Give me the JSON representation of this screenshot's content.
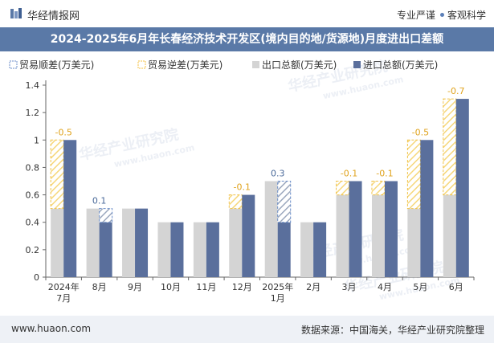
{
  "brand": {
    "name": "华经情报网",
    "tagline_left": "专业严谨",
    "tagline_right": "客观科学"
  },
  "title": "2024-2025年6月年长春经济技术开发区(境内目的地/货源地)月度进出口差额",
  "footer": {
    "url": "www.huaon.com",
    "source": "数据来源：中国海关，华经产业研究院整理"
  },
  "watermark": {
    "cn": "华经产业研究院",
    "en": "www.huaon.com"
  },
  "colors": {
    "export": "#d4d4d4",
    "import": "#5a6f9c",
    "surplus": "#6b8ec9",
    "deficit": "#f5c242",
    "label_surplus": "#4a6a9a",
    "label_deficit": "#e0a31d"
  },
  "chart_data": {
    "type": "bar",
    "categories": [
      "2024年\n7月",
      "8月",
      "9月",
      "10月",
      "11月",
      "12月",
      "2025年\n1月",
      "2月",
      "3月",
      "4月",
      "5月",
      "6月"
    ],
    "series": [
      {
        "name": "贸易顺差(万美元)",
        "values": [
          null,
          0.1,
          null,
          null,
          null,
          null,
          0.3,
          null,
          null,
          null,
          null,
          null
        ]
      },
      {
        "name": "贸易逆差(万美元)",
        "values": [
          -0.5,
          null,
          null,
          null,
          null,
          -0.1,
          null,
          null,
          -0.1,
          -0.1,
          -0.5,
          -0.7
        ]
      },
      {
        "name": "出口总额(万美元)",
        "values": [
          0.5,
          0.5,
          0.5,
          0.4,
          0.4,
          0.5,
          0.7,
          0.4,
          0.6,
          0.6,
          0.5,
          0.6
        ]
      },
      {
        "name": "进口总额(万美元)",
        "values": [
          1.0,
          0.4,
          0.5,
          0.4,
          0.4,
          0.6,
          0.4,
          0.4,
          0.7,
          0.7,
          1.0,
          1.3
        ]
      }
    ],
    "data_labels": [
      "-0.5",
      "0.1",
      "",
      "",
      "",
      "-0.1",
      "0.3",
      "",
      "-0.1",
      "-0.1",
      "-0.5",
      "-0.7"
    ],
    "ylim": [
      0,
      1.4
    ],
    "yticks": [
      0,
      0.2,
      0.4,
      0.6,
      0.8,
      1,
      1.2,
      1.4
    ],
    "legend_position": "top-left",
    "xlabel": "",
    "ylabel": ""
  }
}
